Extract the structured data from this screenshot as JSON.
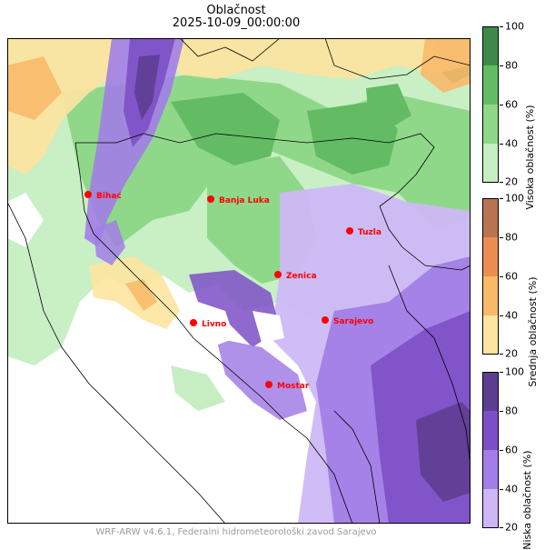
{
  "title": "Oblačnost",
  "subtitle": "2025-10-09_00:00:00",
  "footer": "WRF-ARW v4.6.1, Federalni hidrometeorološki zavod Sarajevo",
  "cities": [
    {
      "name": "Bihać"
    },
    {
      "name": "Banja Luka"
    },
    {
      "name": "Tuzla"
    },
    {
      "name": "Zenica"
    },
    {
      "name": "Livno"
    },
    {
      "name": "Sarajevo"
    },
    {
      "name": "Mostar"
    }
  ],
  "colorbars": [
    {
      "label": "Visoka oblačnost (%)",
      "ticks": [
        "100",
        "80",
        "60",
        "40",
        "20"
      ],
      "colors": [
        "#c6eec2",
        "#8fd88a",
        "#63bb64",
        "#3f8a49"
      ]
    },
    {
      "label": "Srednja oblačnost (%)",
      "ticks": [
        "100",
        "80",
        "60",
        "40",
        "20"
      ],
      "colors": [
        "#fde4a0",
        "#f8b969",
        "#ec8d51",
        "#b97350"
      ]
    },
    {
      "label": "Niska oblačnost (%)",
      "ticks": [
        "100",
        "80",
        "60",
        "40",
        "20"
      ],
      "colors": [
        "#cdb8f5",
        "#a27ee6",
        "#7d4fc6",
        "#5d3d8f"
      ]
    }
  ],
  "colors": {
    "city_marker": "#ff0000",
    "city_label": "#ff0000",
    "footer": "#9a9a9a"
  }
}
